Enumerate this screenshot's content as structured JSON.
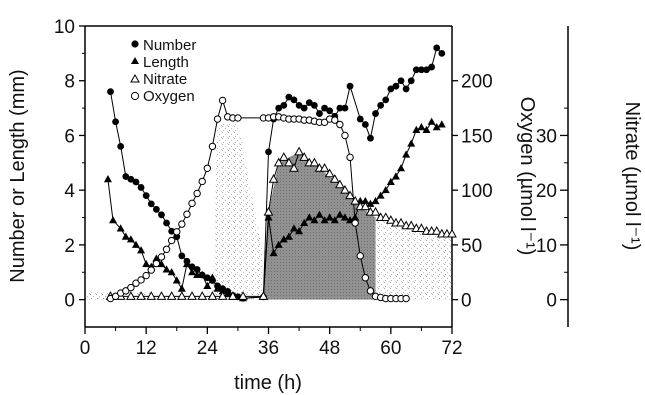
{
  "chart_data": {
    "type": "line",
    "xlabel": "time (h)",
    "ylabel_left": "Number or Length (mm)",
    "ylabel_right1": "Oxygen (µmol l⁻¹)",
    "ylabel_right2": "Nitrate (µmol l⁻¹)",
    "xlim": [
      0,
      72
    ],
    "ylim_left": [
      -1,
      10
    ],
    "ylim_oxygen": [
      -25,
      250
    ],
    "ylim_nitrate": [
      -5,
      50
    ],
    "x_ticks": [
      0,
      12,
      24,
      36,
      48,
      60,
      72
    ],
    "y_left_ticks": [
      0,
      2,
      4,
      6,
      8,
      10
    ],
    "y_oxygen_ticks": [
      0,
      50,
      100,
      150,
      200
    ],
    "y_nitrate_ticks": [
      0,
      10,
      20,
      30
    ],
    "legend": [
      "Number",
      "Length",
      "Nitrate",
      "Oxygen"
    ],
    "legend_position": "top-left",
    "series": [
      {
        "name": "Number",
        "axis": "left",
        "marker": "filled-circle",
        "x": [
          5,
          6,
          7,
          8,
          9,
          10,
          11,
          12,
          13,
          14,
          15,
          16,
          17,
          18,
          19,
          20,
          21,
          22,
          23,
          24,
          25,
          26,
          27,
          28,
          29,
          30,
          31,
          35,
          36,
          37,
          38,
          39,
          40,
          41,
          42,
          43,
          44,
          45,
          46,
          47,
          48,
          49,
          50,
          51,
          52,
          54,
          55,
          56,
          57,
          58,
          59,
          60,
          61,
          62,
          63,
          64,
          65,
          66,
          67,
          68,
          69,
          70
        ],
        "y": [
          7.6,
          6.5,
          5.6,
          4.5,
          4.4,
          4.3,
          4.1,
          3.8,
          3.5,
          3.3,
          3.1,
          2.8,
          2.5,
          2.3,
          1.6,
          1.4,
          1.2,
          1.1,
          0.9,
          0.8,
          0.7,
          0.5,
          0.4,
          0.3,
          0.15,
          0.1,
          0.05,
          0.1,
          5.4,
          6.6,
          7.0,
          7.1,
          7.4,
          7.3,
          7.1,
          7.0,
          7.2,
          7.1,
          6.8,
          7.0,
          6.9,
          6.7,
          7.0,
          7.0,
          7.8,
          6.6,
          6.4,
          5.9,
          6.8,
          7.1,
          7.3,
          7.7,
          7.8,
          8.0,
          7.7,
          8.0,
          8.4,
          8.4,
          8.4,
          8.5,
          9.2,
          9.0
        ]
      },
      {
        "name": "Length",
        "axis": "left",
        "marker": "filled-triangle",
        "x": [
          4.5,
          5.5,
          7,
          8,
          9,
          10,
          11,
          12,
          13,
          14,
          15,
          16,
          17,
          18,
          19,
          20,
          21,
          22,
          23,
          24,
          25,
          26,
          27,
          28,
          29,
          30,
          31,
          35,
          36,
          37,
          38,
          39,
          40,
          41,
          42,
          43,
          44,
          45,
          46,
          47,
          48,
          49,
          50,
          51,
          52,
          53,
          54,
          55,
          56,
          57,
          58,
          59,
          60,
          61,
          62,
          63,
          64,
          65,
          66,
          67,
          68,
          69,
          70
        ],
        "y": [
          4.4,
          2.9,
          2.6,
          2.3,
          2.2,
          2.0,
          1.8,
          1.3,
          1.2,
          1.5,
          1.3,
          1.1,
          1.0,
          0.7,
          0.4,
          1.3,
          1.0,
          0.9,
          0.9,
          0.5,
          0.8,
          0.4,
          0.3,
          0.2,
          0.1,
          0.1,
          0.05,
          0.1,
          3.0,
          1.7,
          2.0,
          2.2,
          2.3,
          2.6,
          2.5,
          2.8,
          3.0,
          2.9,
          3.1,
          2.9,
          3.0,
          2.9,
          3.1,
          3.0,
          2.9,
          3.0,
          3.6,
          3.6,
          3.5,
          3.6,
          3.8,
          4.0,
          4.3,
          4.5,
          4.8,
          5.3,
          5.7,
          6.2,
          6.3,
          6.2,
          6.5,
          6.3,
          6.4
        ]
      },
      {
        "name": "Nitrate",
        "axis": "right2",
        "marker": "open-triangle",
        "x": [
          5,
          7,
          9,
          11,
          13,
          15,
          17,
          19,
          21,
          23,
          25,
          27,
          29,
          31,
          35,
          36,
          37,
          38,
          39,
          40,
          41,
          42,
          43,
          44,
          45,
          46,
          47,
          48,
          49,
          50,
          51,
          52,
          53,
          54,
          55,
          56,
          57,
          58,
          59,
          60,
          61,
          62,
          63,
          64,
          65,
          66,
          67,
          68,
          69,
          70,
          71,
          72
        ],
        "y": [
          0.6,
          0.6,
          0.6,
          0.6,
          0.6,
          0.6,
          0.6,
          0.6,
          0.6,
          0.6,
          0.6,
          0.6,
          0.6,
          0.6,
          0.6,
          16,
          22,
          25,
          26,
          25,
          24,
          27,
          26,
          25,
          25,
          24,
          24,
          23,
          22,
          21,
          20,
          19,
          18,
          17,
          17,
          16,
          16,
          15,
          15,
          14.5,
          14,
          14,
          13.5,
          13.5,
          13,
          13,
          12.5,
          12.5,
          12.5,
          12,
          12,
          12
        ]
      },
      {
        "name": "Oxygen",
        "axis": "right1",
        "marker": "open-circle",
        "x": [
          5,
          6,
          7,
          8,
          9,
          10,
          11,
          12,
          13,
          14,
          15,
          16,
          17,
          18,
          19,
          20,
          21,
          22,
          23,
          24,
          25,
          26,
          27,
          28,
          29,
          30,
          35,
          36,
          37,
          38,
          39,
          40,
          41,
          42,
          43,
          44,
          45,
          46,
          47,
          48,
          49,
          50,
          51,
          52,
          53,
          54,
          55,
          56,
          57,
          58,
          59,
          60,
          61,
          62,
          63
        ],
        "y": [
          1,
          3,
          6,
          8,
          11,
          15,
          18,
          22,
          27,
          33,
          39,
          46,
          54,
          62,
          69,
          78,
          88,
          97,
          108,
          120,
          140,
          165,
          182,
          167,
          166,
          166,
          166,
          166,
          167,
          167,
          166,
          165,
          165,
          165,
          164,
          164,
          163,
          162,
          162,
          165,
          164,
          160,
          150,
          130,
          70,
          40,
          20,
          8,
          3,
          2,
          1,
          1,
          1,
          1,
          1
        ]
      }
    ],
    "shaded_regions": [
      {
        "kind": "dark-cloud",
        "x_range": [
          35,
          57
        ],
        "baseline": 0
      },
      {
        "kind": "light-speckle",
        "x_range": [
          24,
          72
        ]
      }
    ]
  }
}
